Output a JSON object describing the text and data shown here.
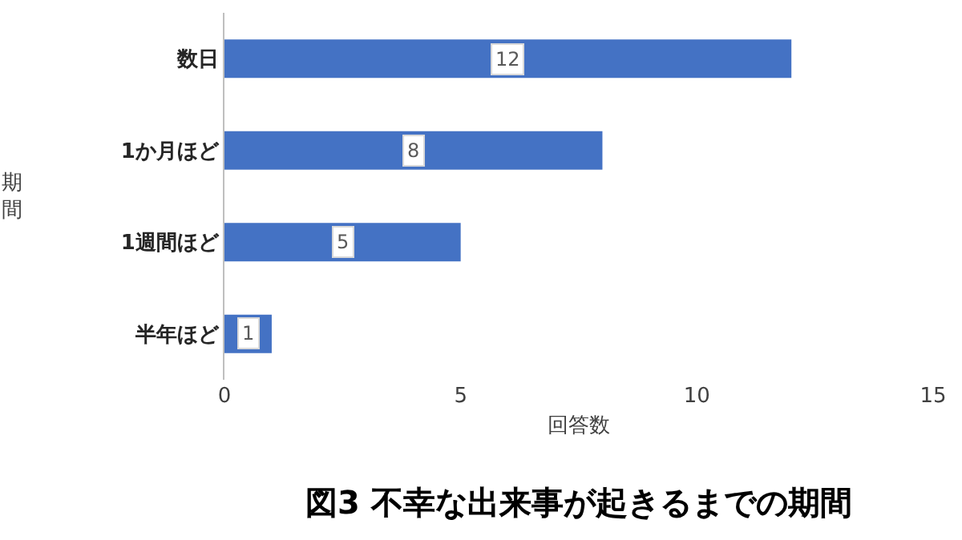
{
  "chart_data": {
    "type": "bar",
    "orientation": "horizontal",
    "title": "図3 不幸な出来事が起きるまでの期間",
    "xlabel": "回答数",
    "ylabel": "期間",
    "categories": [
      "数日",
      "1か月ほど",
      "1週間ほど",
      "半年ほど"
    ],
    "values": [
      12,
      8,
      5,
      1
    ],
    "color": "#4472c4",
    "data_labels": true,
    "xlim": [
      0,
      15
    ],
    "xticks": [
      0,
      5,
      10,
      15
    ],
    "grid": false,
    "legend": false
  }
}
